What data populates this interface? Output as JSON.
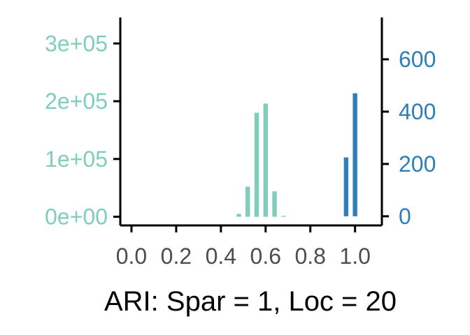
{
  "chart_data": {
    "type": "bar",
    "xlabel": "ARI: Spar = 1, Loc = 20",
    "xlim": [
      -0.05,
      1.12
    ],
    "xticks": [
      0.0,
      0.2,
      0.4,
      0.6,
      0.8,
      1.0
    ],
    "xtick_labels": [
      "0.0",
      "0.2",
      "0.4",
      "0.6",
      "0.8",
      "1.0"
    ],
    "y_left": {
      "ylim": [
        -15000,
        345000
      ],
      "ticks": [
        0,
        100000,
        200000,
        300000
      ],
      "tick_labels": [
        "0e+00",
        "1e+05",
        "2e+05",
        "3e+05"
      ],
      "color": "#7fcdbb"
    },
    "y_right": {
      "ylim": [
        -35,
        760
      ],
      "ticks": [
        0,
        200,
        400,
        600
      ],
      "tick_labels": [
        "0",
        "200",
        "400",
        "600"
      ],
      "color": "#2c7fb8"
    },
    "series": [
      {
        "axis": "left",
        "color": "#7fcdbb",
        "bin_width": 0.02,
        "bins": [
          {
            "x": 0.48,
            "value": 5000
          },
          {
            "x": 0.52,
            "value": 52000
          },
          {
            "x": 0.56,
            "value": 180000
          },
          {
            "x": 0.6,
            "value": 196000
          },
          {
            "x": 0.64,
            "value": 44000
          },
          {
            "x": 0.68,
            "value": 1500
          }
        ]
      },
      {
        "axis": "right",
        "color": "#2c7fb8",
        "bin_width": 0.02,
        "bins": [
          {
            "x": 0.96,
            "value": 225
          },
          {
            "x": 1.0,
            "value": 470
          }
        ]
      }
    ]
  }
}
